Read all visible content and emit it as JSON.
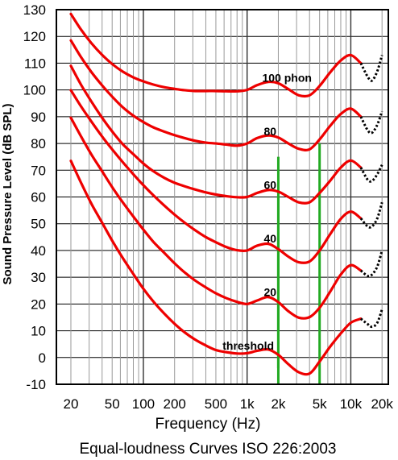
{
  "chart_data": {
    "type": "line",
    "title": "Equal-loudness Curves ISO 226:2003",
    "xlabel": "Frequency (Hz)",
    "ylabel": "Sound Pressure Level (dB SPL)",
    "x_scale": "log",
    "xlim": [
      14.5,
      23000
    ],
    "ylim": [
      -10,
      130
    ],
    "grid": true,
    "y_ticks": [
      -10,
      0,
      10,
      20,
      30,
      40,
      50,
      60,
      70,
      80,
      90,
      100,
      110,
      120,
      130
    ],
    "y_tick_labels": [
      "-10",
      "0",
      "10",
      "20",
      "30",
      "40",
      "50",
      "60",
      "70",
      "80",
      "90",
      "100",
      "110",
      "120",
      "130"
    ],
    "x_ticks": [
      20,
      50,
      100,
      200,
      500,
      1000,
      2000,
      5000,
      10000,
      20000
    ],
    "x_tick_labels": [
      "20",
      "50",
      "100",
      "200",
      "500",
      "1k",
      "2k",
      "5k",
      "10k",
      "20k"
    ],
    "minor_grid_x": [
      30,
      40,
      60,
      70,
      80,
      90,
      300,
      400,
      600,
      700,
      800,
      900,
      3000,
      4000,
      6000,
      7000,
      8000,
      9000
    ],
    "x_grid_majors": [
      10,
      100,
      1000,
      10000
    ],
    "colors": {
      "curves": "#ee0000",
      "extrapolated": "#000000",
      "markers": "#22aa22",
      "grid": "#999999"
    },
    "series": [
      {
        "name": "100 phon",
        "label_at": [
          1400,
          103
        ],
        "x": [
          20,
          25,
          31.5,
          40,
          50,
          63,
          80,
          100,
          125,
          160,
          200,
          250,
          315,
          400,
          500,
          630,
          800,
          1000,
          1250,
          1600,
          2000,
          2500,
          3150,
          4000,
          5000,
          6300,
          8000,
          10000,
          12500
        ],
        "y": [
          128.4,
          122.6,
          117.5,
          113.1,
          109.7,
          106.9,
          104.7,
          103.2,
          102.0,
          101.0,
          100.4,
          99.9,
          99.6,
          99.6,
          99.6,
          99.5,
          99.5,
          100.0,
          101.8,
          103.0,
          102.5,
          100.3,
          98.0,
          98.0,
          101.5,
          106.5,
          111.0,
          113.0,
          110.0
        ],
        "extension": {
          "x": [
            12500,
            14500,
            16000,
            18000,
            20000
          ],
          "y": [
            110.0,
            105.0,
            103.5,
            107.0,
            113.0
          ]
        }
      },
      {
        "name": "80",
        "label_at": [
          1450,
          83
        ],
        "x": [
          20,
          25,
          31.5,
          40,
          50,
          63,
          80,
          100,
          125,
          160,
          200,
          250,
          315,
          400,
          500,
          630,
          800,
          1000,
          1250,
          1600,
          2000,
          2500,
          3150,
          4000,
          5000,
          6300,
          8000,
          10000,
          12500
        ],
        "y": [
          118.5,
          112.3,
          106.7,
          101.7,
          97.5,
          93.6,
          90.4,
          88.0,
          86.0,
          84.4,
          83.1,
          82.0,
          81.0,
          80.3,
          80.0,
          79.6,
          79.2,
          80.0,
          82.0,
          83.0,
          82.2,
          80.0,
          78.0,
          77.8,
          81.5,
          86.5,
          91.0,
          93.0,
          90.0
        ],
        "extension": {
          "x": [
            12500,
            14500,
            16000,
            18000,
            20000
          ],
          "y": [
            90.0,
            85.0,
            84.0,
            87.0,
            92.0
          ]
        }
      },
      {
        "name": "60",
        "label_at": [
          1450,
          63
        ],
        "x": [
          20,
          25,
          31.5,
          40,
          50,
          63,
          80,
          100,
          125,
          160,
          200,
          250,
          315,
          400,
          500,
          630,
          800,
          1000,
          1250,
          1600,
          2000,
          2500,
          3150,
          4000,
          5000,
          6300,
          8000,
          10000,
          12500
        ],
        "y": [
          109.0,
          102.0,
          95.7,
          89.6,
          84.5,
          79.8,
          76.0,
          72.5,
          69.6,
          67.1,
          65.3,
          64.0,
          62.8,
          61.7,
          60.9,
          60.3,
          59.9,
          60.0,
          61.5,
          62.6,
          62.0,
          60.0,
          58.0,
          58.0,
          61.5,
          66.0,
          71.0,
          73.6,
          71.0
        ],
        "extension": {
          "x": [
            12500,
            14500,
            16000,
            18000,
            20000
          ],
          "y": [
            71.0,
            66.5,
            66.0,
            68.5,
            72.0
          ]
        }
      },
      {
        "name": "40",
        "label_at": [
          1450,
          43
        ],
        "x": [
          20,
          25,
          31.5,
          40,
          50,
          63,
          80,
          100,
          125,
          160,
          200,
          250,
          315,
          400,
          500,
          630,
          800,
          1000,
          1250,
          1600,
          2000,
          2500,
          3150,
          4000,
          5000,
          6300,
          8000,
          10000,
          12500
        ],
        "y": [
          99.9,
          93.9,
          88.2,
          82.6,
          77.8,
          73.1,
          68.5,
          64.4,
          60.6,
          56.7,
          53.4,
          50.4,
          47.6,
          45.0,
          43.1,
          41.3,
          40.1,
          40.0,
          41.8,
          42.5,
          40.5,
          37.7,
          35.6,
          35.9,
          40.0,
          46.0,
          51.8,
          54.5,
          52.0
        ],
        "extension": {
          "x": [
            12500,
            14500,
            16000,
            18000,
            20000
          ],
          "y": [
            52.0,
            49.0,
            49.0,
            52.0,
            58.0
          ]
        }
      },
      {
        "name": "20",
        "label_at": [
          1450,
          23
        ],
        "x": [
          20,
          25,
          31.5,
          40,
          50,
          63,
          80,
          100,
          125,
          160,
          200,
          250,
          315,
          400,
          500,
          630,
          800,
          1000,
          1250,
          1600,
          2000,
          2500,
          3150,
          4000,
          5000,
          6300,
          8000,
          10000,
          12500
        ],
        "y": [
          89.6,
          82.7,
          75.9,
          69.6,
          63.7,
          58.1,
          52.7,
          47.8,
          43.2,
          39.0,
          35.2,
          31.8,
          28.8,
          26.2,
          24.0,
          22.2,
          20.8,
          20.0,
          21.3,
          22.6,
          20.7,
          17.3,
          14.9,
          15.1,
          18.6,
          24.5,
          31.0,
          34.5,
          32.5
        ],
        "extension": {
          "x": [
            12500,
            14500,
            16000,
            18000,
            20000
          ],
          "y": [
            32.5,
            30.5,
            31.0,
            34.0,
            40.0
          ]
        }
      },
      {
        "name": "threshold",
        "label_at": [
          580,
          3
        ],
        "x": [
          20,
          25,
          31.5,
          40,
          50,
          63,
          80,
          100,
          125,
          160,
          200,
          250,
          315,
          400,
          500,
          630,
          800,
          1000,
          1250,
          1600,
          2000,
          2500,
          3150,
          4000,
          5000,
          6300,
          8000,
          10000,
          12500
        ],
        "y": [
          73.5,
          65.4,
          57.5,
          50.4,
          43.7,
          37.3,
          31.2,
          25.7,
          20.9,
          16.3,
          12.6,
          9.4,
          6.7,
          4.5,
          2.8,
          2.0,
          1.5,
          1.6,
          2.5,
          3.0,
          1.0,
          -2.5,
          -5.5,
          -6.0,
          -1.5,
          4.0,
          9.0,
          13.0,
          14.5
        ],
        "extension": {
          "x": [
            12500,
            14500,
            16000,
            18000,
            20000
          ],
          "y": [
            14.5,
            12.5,
            11.5,
            13.0,
            18.0
          ]
        }
      }
    ],
    "markers": [
      {
        "x": 2000,
        "segments": [
          [
            -4,
            75
          ],
          [
            -4,
            60
          ],
          [
            -10,
            49
          ]
        ]
      },
      {
        "x": 5000,
        "segments": [
          [
            -10,
            80
          ]
        ]
      }
    ]
  }
}
